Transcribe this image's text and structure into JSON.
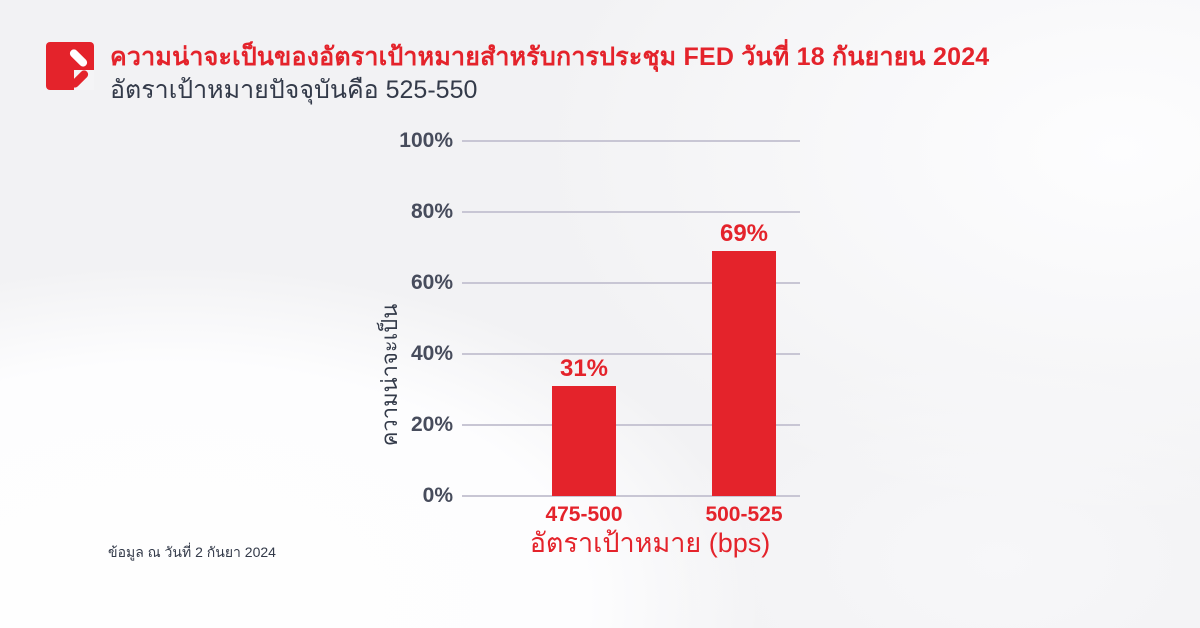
{
  "colors": {
    "brand_red": "#e4232b",
    "dark_navy": "#333a49",
    "tick_gray": "#474c5c",
    "gridline": "#c8c6d4"
  },
  "header": {
    "title_parts": [
      {
        "text": "ความน่าจะเป็นของอัตราเป้าหมายสำหรับการประชุม ",
        "bold": false
      },
      {
        "text": "FED",
        "bold": true
      },
      {
        "text": " วันที่ ",
        "bold": false
      },
      {
        "text": "18",
        "bold": true
      },
      {
        "text": " กันยายน ",
        "bold": false
      },
      {
        "text": "2024",
        "bold": true
      }
    ],
    "subtitle": "อัตราเป้าหมายปัจจุบันคือ 525-550"
  },
  "chart_data": {
    "type": "bar",
    "title": "ความน่าจะเป็นของอัตราเป้าหมายสำหรับการประชุม FED วันที่ 18 กันยายน 2024",
    "subtitle": "อัตราเป้าหมายปัจจุบันคือ 525-550",
    "categories": [
      "475-500",
      "500-525"
    ],
    "values": [
      31,
      69
    ],
    "value_labels": [
      "31%",
      "69%"
    ],
    "xlabel": "อัตราเป้าหมาย (bps)",
    "ylabel": "ความน่าจะเป็น",
    "ylim": [
      0,
      100
    ],
    "yticks": [
      "0%",
      "20%",
      "40%",
      "60%",
      "80%",
      "100%"
    ],
    "grid": true,
    "legend": "none",
    "bar_color": "#e4232b"
  },
  "footnote": "ข้อมูล ณ วันที่ 2 กันยา 2024",
  "logo": {
    "name": "brand-logo-red-square-double-slash"
  }
}
